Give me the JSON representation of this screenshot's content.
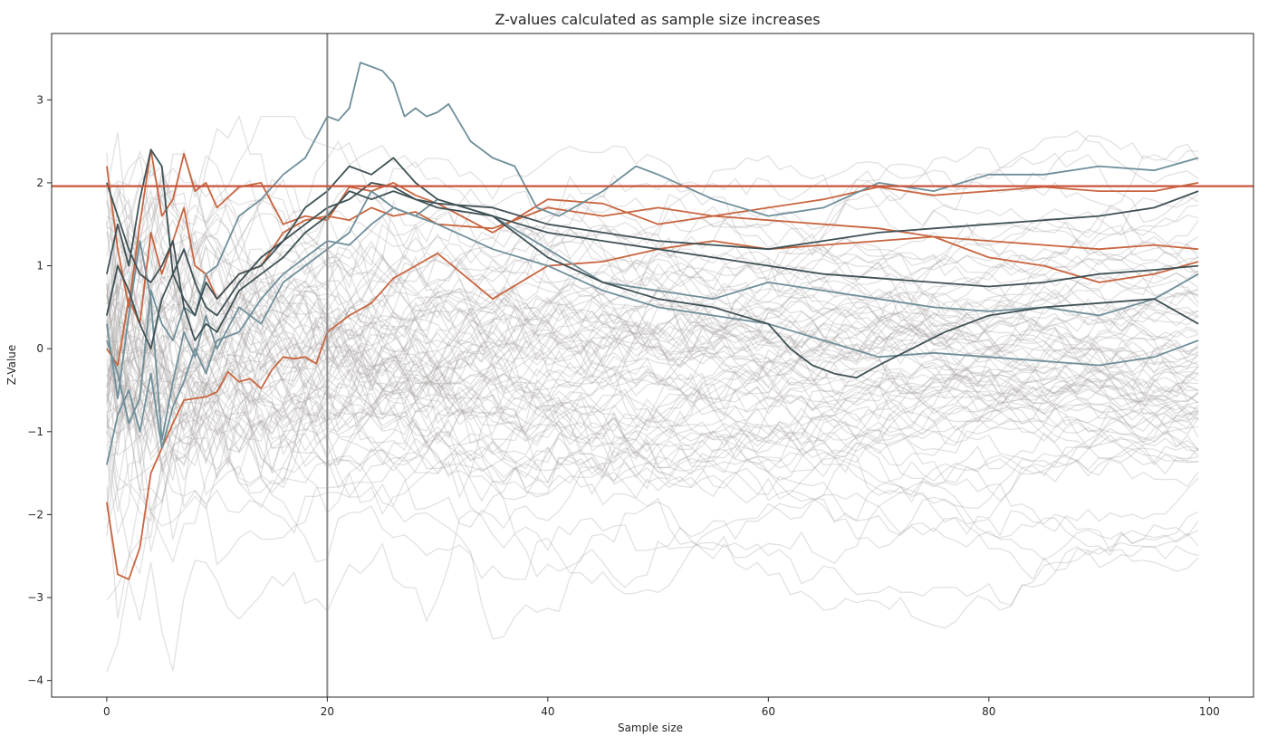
{
  "chart_data": {
    "type": "line",
    "title": "Z-values calculated as sample size increases",
    "xlabel": "Sample size",
    "ylabel": "Z-Value",
    "xlim": [
      -5,
      104
    ],
    "ylim": [
      -4.2,
      3.8
    ],
    "x_ticks": [
      0,
      20,
      40,
      60,
      80,
      100
    ],
    "y_ticks": [
      -4,
      -3,
      -2,
      -1,
      0,
      1,
      2,
      3
    ],
    "grid": false,
    "legend": "none",
    "reference_lines": {
      "horizontal_y": 1.96,
      "horizontal_color": "#c8553d",
      "vertical_x": 20,
      "vertical_color": "#8c8c8c"
    },
    "background_series": {
      "count": 90,
      "color": "#a9a3a3",
      "opacity": 0.33,
      "x_range": [
        0,
        99
      ],
      "approx_final_range": [
        -2.35,
        1.6
      ]
    },
    "highlighted_series": [
      {
        "color": "#c8653f",
        "x": [
          0,
          1,
          2,
          3,
          4,
          5,
          6,
          7,
          8,
          9,
          10,
          11,
          12,
          13,
          14,
          15,
          16,
          17,
          18,
          19,
          20,
          22,
          24,
          26,
          28,
          30,
          35,
          40,
          45,
          50,
          55,
          60,
          65,
          70,
          75,
          80,
          85,
          90,
          95,
          99
        ],
        "values": [
          -1.85,
          -2.72,
          -2.78,
          -2.4,
          -1.5,
          -1.2,
          -0.9,
          -0.62,
          -0.6,
          -0.58,
          -0.52,
          -0.28,
          -0.4,
          -0.36,
          -0.48,
          -0.25,
          -0.1,
          -0.12,
          -0.1,
          -0.18,
          0.2,
          0.4,
          0.55,
          0.85,
          1.0,
          1.15,
          0.6,
          1.0,
          1.05,
          1.2,
          1.3,
          1.2,
          1.25,
          1.3,
          1.35,
          1.1,
          1.0,
          0.8,
          0.9,
          1.05
        ]
      },
      {
        "color": "#c8653f",
        "x": [
          0,
          1,
          2,
          3,
          4,
          5,
          6,
          7,
          8,
          9,
          10,
          12,
          14,
          16,
          18,
          20,
          22,
          24,
          26,
          28,
          30,
          35,
          40,
          45,
          50,
          55,
          60,
          65,
          70,
          75,
          80,
          85,
          90,
          95,
          99
        ],
        "values": [
          2.2,
          1.2,
          0.5,
          1.5,
          2.4,
          1.6,
          1.8,
          2.35,
          1.9,
          2.0,
          1.7,
          1.95,
          2.0,
          1.5,
          1.6,
          1.55,
          1.95,
          1.9,
          2.0,
          1.85,
          1.75,
          1.4,
          1.8,
          1.75,
          1.5,
          1.6,
          1.7,
          1.8,
          1.95,
          1.85,
          1.9,
          1.95,
          1.9,
          1.9,
          2.0
        ]
      },
      {
        "color": "#c8653f",
        "x": [
          0,
          1,
          2,
          3,
          4,
          5,
          6,
          7,
          8,
          9,
          10,
          12,
          14,
          16,
          18,
          20,
          22,
          24,
          26,
          28,
          30,
          35,
          40,
          45,
          50,
          55,
          60,
          65,
          70,
          75,
          80,
          85,
          90,
          95,
          99
        ],
        "values": [
          0.0,
          -0.2,
          0.6,
          0.3,
          1.4,
          0.9,
          1.3,
          1.7,
          1.0,
          0.9,
          0.6,
          0.9,
          1.0,
          1.4,
          1.55,
          1.6,
          1.55,
          1.7,
          1.6,
          1.65,
          1.5,
          1.45,
          1.7,
          1.6,
          1.7,
          1.6,
          1.55,
          1.5,
          1.45,
          1.35,
          1.3,
          1.25,
          1.2,
          1.25,
          1.2
        ]
      },
      {
        "color": "#6f8f99",
        "x": [
          0,
          1,
          2,
          3,
          4,
          5,
          6,
          7,
          8,
          9,
          10,
          12,
          14,
          16,
          18,
          20,
          21,
          22,
          23,
          24,
          25,
          26,
          27,
          28,
          29,
          30,
          31,
          33,
          35,
          37,
          39,
          41,
          45,
          48,
          50,
          55,
          60,
          65,
          70,
          75,
          80,
          85,
          90,
          95,
          99
        ],
        "values": [
          0.1,
          -0.3,
          -0.9,
          -0.6,
          0.7,
          0.3,
          0.1,
          0.5,
          0.4,
          0.9,
          1.0,
          1.6,
          1.8,
          2.1,
          2.3,
          2.8,
          2.75,
          2.9,
          3.45,
          3.4,
          3.35,
          3.2,
          2.8,
          2.9,
          2.8,
          2.85,
          2.95,
          2.5,
          2.3,
          2.2,
          1.7,
          1.6,
          1.9,
          2.2,
          2.1,
          1.8,
          1.6,
          1.7,
          2.0,
          1.9,
          2.1,
          2.1,
          2.2,
          2.15,
          2.3
        ]
      },
      {
        "color": "#6f8f99",
        "x": [
          0,
          1,
          2,
          3,
          4,
          5,
          6,
          7,
          8,
          9,
          10,
          12,
          14,
          16,
          18,
          20,
          22,
          24,
          26,
          28,
          30,
          35,
          40,
          45,
          50,
          55,
          60,
          65,
          70,
          75,
          80,
          85,
          90,
          95,
          99
        ],
        "values": [
          -1.4,
          -0.8,
          -0.5,
          -1.0,
          -0.3,
          -1.2,
          -0.7,
          -0.4,
          0.0,
          -0.3,
          0.1,
          0.2,
          0.6,
          0.9,
          1.1,
          1.3,
          1.25,
          1.5,
          1.7,
          1.6,
          1.8,
          1.6,
          1.2,
          0.8,
          0.7,
          0.6,
          0.8,
          0.7,
          0.6,
          0.5,
          0.45,
          0.5,
          0.4,
          0.6,
          0.9
        ]
      },
      {
        "color": "#6f8f99",
        "x": [
          0,
          1,
          2,
          3,
          4,
          5,
          6,
          7,
          8,
          9,
          10,
          12,
          14,
          16,
          18,
          20,
          22,
          24,
          26,
          28,
          30,
          35,
          40,
          45,
          50,
          55,
          60,
          65,
          70,
          75,
          80,
          85,
          90,
          95,
          99
        ],
        "values": [
          0.3,
          -0.6,
          0.4,
          1.3,
          0.6,
          -1.1,
          -0.4,
          0.2,
          -0.1,
          0.4,
          0.0,
          0.5,
          0.3,
          0.8,
          1.0,
          1.2,
          1.4,
          1.9,
          1.7,
          1.6,
          1.5,
          1.2,
          1.0,
          0.7,
          0.5,
          0.4,
          0.3,
          0.1,
          -0.1,
          -0.05,
          -0.1,
          -0.15,
          -0.2,
          -0.1,
          0.1
        ]
      },
      {
        "color": "#3f5155",
        "x": [
          0,
          1,
          2,
          3,
          4,
          5,
          6,
          7,
          8,
          9,
          10,
          12,
          14,
          16,
          18,
          20,
          22,
          24,
          26,
          28,
          30,
          35,
          40,
          45,
          50,
          55,
          60,
          62,
          64,
          66,
          68,
          70,
          73,
          76,
          80,
          85,
          90,
          95,
          99
        ],
        "values": [
          0.9,
          1.5,
          1.0,
          1.8,
          2.4,
          2.2,
          0.9,
          0.6,
          0.4,
          0.8,
          0.6,
          0.9,
          1.0,
          1.3,
          1.7,
          1.9,
          2.2,
          2.1,
          2.3,
          2.0,
          1.8,
          1.6,
          1.1,
          0.8,
          0.6,
          0.5,
          0.3,
          0.0,
          -0.2,
          -0.3,
          -0.35,
          -0.2,
          0.0,
          0.2,
          0.4,
          0.5,
          0.55,
          0.6,
          0.3
        ]
      },
      {
        "color": "#3f5155",
        "x": [
          0,
          1,
          2,
          3,
          4,
          5,
          6,
          7,
          8,
          9,
          10,
          12,
          14,
          16,
          18,
          20,
          22,
          24,
          26,
          28,
          30,
          35,
          40,
          45,
          50,
          55,
          60,
          65,
          70,
          75,
          80,
          85,
          90,
          95,
          99
        ],
        "values": [
          2.0,
          1.6,
          1.2,
          0.9,
          0.8,
          1.0,
          1.3,
          0.5,
          0.1,
          0.3,
          0.2,
          0.7,
          0.9,
          1.1,
          1.4,
          1.6,
          1.9,
          1.8,
          1.9,
          1.8,
          1.7,
          1.6,
          1.4,
          1.3,
          1.2,
          1.1,
          1.0,
          0.9,
          0.85,
          0.8,
          0.75,
          0.8,
          0.9,
          0.95,
          1.0
        ]
      },
      {
        "color": "#3f5155",
        "x": [
          0,
          1,
          2,
          3,
          4,
          5,
          6,
          7,
          8,
          9,
          10,
          12,
          14,
          16,
          18,
          20,
          22,
          24,
          26,
          28,
          30,
          35,
          40,
          45,
          50,
          55,
          60,
          65,
          70,
          75,
          80,
          85,
          90,
          95,
          99
        ],
        "values": [
          0.4,
          1.0,
          0.7,
          0.3,
          0.0,
          0.6,
          0.9,
          1.2,
          0.8,
          0.5,
          0.4,
          0.8,
          1.1,
          1.3,
          1.5,
          1.7,
          1.8,
          2.0,
          1.95,
          1.8,
          1.75,
          1.7,
          1.5,
          1.4,
          1.3,
          1.25,
          1.2,
          1.3,
          1.4,
          1.45,
          1.5,
          1.55,
          1.6,
          1.7,
          1.9
        ]
      }
    ]
  }
}
